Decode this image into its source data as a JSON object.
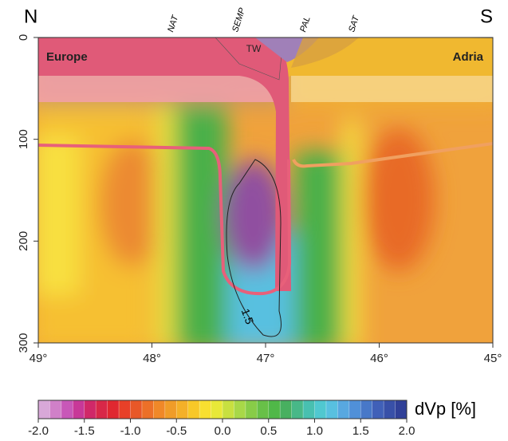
{
  "chart_data": {
    "type": "heatmap",
    "corner_labels": [
      "N",
      "S"
    ],
    "region_labels": [
      "Europe",
      "Adria",
      "TW"
    ],
    "surface_labels": [
      "NAT",
      "SEMP",
      "PAL",
      "SAT"
    ],
    "contour_label": "1.5",
    "xlim": [
      49,
      45
    ],
    "xticks": [
      {
        "value": 49,
        "label": "49°"
      },
      {
        "value": 48,
        "label": "48°"
      },
      {
        "value": 47,
        "label": "47°"
      },
      {
        "value": 46,
        "label": "46°"
      },
      {
        "value": 45,
        "label": "45°"
      }
    ],
    "ylim": [
      0,
      300
    ],
    "yticks": [
      0,
      100,
      200,
      300
    ],
    "colorbar": {
      "label": "dVp [%]",
      "lim": [
        -2,
        2
      ],
      "ticks": [
        {
          "value": -2,
          "label": "-2.0"
        },
        -1.5,
        {
          "value": -1,
          "label": "-1.0"
        },
        -0.5,
        {
          "value": 0,
          "label": "0.0"
        },
        0.5,
        {
          "value": 1,
          "label": "1.0"
        },
        1.5,
        {
          "value": 2,
          "label": "2.0"
        }
      ],
      "colors": [
        "#d8a8d8",
        "#d080c8",
        "#c858b8",
        "#c83898",
        "#d02868",
        "#d82848",
        "#e02830",
        "#e84028",
        "#e85828",
        "#ec7028",
        "#f08828",
        "#f09c28",
        "#f4b028",
        "#f8c828",
        "#f8e030",
        "#e8e838",
        "#c8e040",
        "#a8d848",
        "#88cc48",
        "#68c048",
        "#50b848",
        "#48b060",
        "#48b888",
        "#48c0b0",
        "#50c8d0",
        "#58c0e0",
        "#58a8e0",
        "#5090d8",
        "#4878c8",
        "#4060b8",
        "#3850a8",
        "#304098"
      ]
    }
  }
}
